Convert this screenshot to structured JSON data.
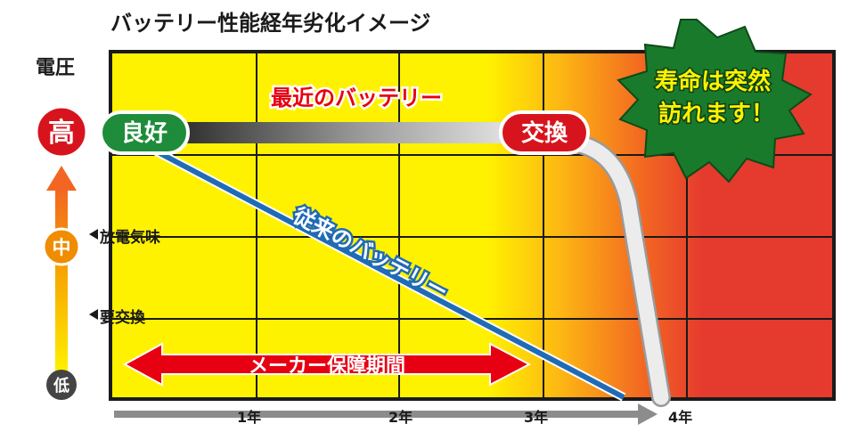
{
  "title": "バッテリー性能経年劣化イメージ",
  "axis": {
    "y_label": "電圧",
    "levels": {
      "high": "高",
      "mid": "中",
      "low": "低"
    },
    "marks": [
      "放電気味",
      "要交換"
    ],
    "x_ticks": [
      "1年",
      "2年",
      "3年",
      "4年"
    ]
  },
  "badges": {
    "good": "良好",
    "replace": "交換"
  },
  "lines": {
    "modern": "最近のバッテリー",
    "conventional": "従来のバッテリー"
  },
  "warranty": "メーカー保障期間",
  "burst": {
    "line1": "寿命は突然",
    "line2": "訪れます！"
  },
  "colors": {
    "yellow": "#fff200",
    "red": "#e53a2e",
    "blue": "#1f6bb5",
    "green": "#1e8c3a",
    "badge_red": "#d7141e",
    "orange": "#f08c00"
  }
}
